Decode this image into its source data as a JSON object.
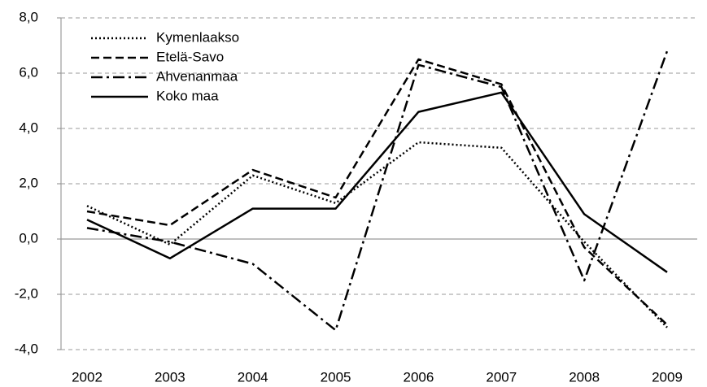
{
  "chart_data": {
    "type": "line",
    "categories": [
      "2002",
      "2003",
      "2004",
      "2005",
      "2006",
      "2007",
      "2008",
      "2009"
    ],
    "series": [
      {
        "name": "Kymenlaakso",
        "color": "#000000",
        "dash": "dotted",
        "values": [
          1.2,
          -0.2,
          2.3,
          1.3,
          3.5,
          3.3,
          -0.1,
          -3.2
        ]
      },
      {
        "name": "Etelä-Savo",
        "color": "#000000",
        "dash": "dashed",
        "values": [
          1.0,
          0.5,
          2.5,
          1.5,
          6.5,
          5.6,
          -0.3,
          -3.1
        ]
      },
      {
        "name": "Ahvenanmaa",
        "color": "#000000",
        "dash": "dashdot",
        "values": [
          0.4,
          -0.1,
          -0.9,
          -3.3,
          6.3,
          5.5,
          -1.5,
          6.8
        ]
      },
      {
        "name": "Koko maa",
        "color": "#000000",
        "dash": "solid",
        "values": [
          0.7,
          -0.7,
          1.1,
          1.1,
          4.6,
          5.3,
          0.9,
          -1.2
        ]
      }
    ],
    "ylim": [
      -4,
      8
    ],
    "yticks": [
      {
        "value": -4,
        "label": "-4,0"
      },
      {
        "value": -2,
        "label": "-2,0"
      },
      {
        "value": 0,
        "label": "0,0"
      },
      {
        "value": 2,
        "label": "2,0"
      },
      {
        "value": 4,
        "label": "4,0"
      },
      {
        "value": 6,
        "label": "6,0"
      },
      {
        "value": 8,
        "label": "8,0"
      }
    ],
    "grid": true,
    "legend": "top-left"
  }
}
